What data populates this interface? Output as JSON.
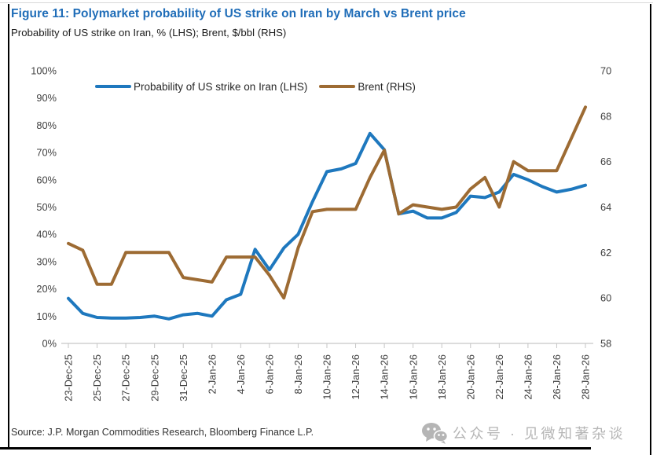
{
  "figure": {
    "title": "Figure 11: Polymarket probability of US strike on Iran by March vs Brent price",
    "subtitle": "Probability of US strike on Iran, % (LHS); Brent, $/bbl (RHS)",
    "source": "Source: J.P. Morgan Commodities Research, Bloomberg Finance L.P.",
    "watermark": "公众号 · 见微知著杂谈"
  },
  "colors": {
    "title": "#1F6DB8",
    "probability_line": "#1E78BE",
    "brent_line": "#9D6B33",
    "axis_text": "#404040",
    "axis_line": "#C6C6C6",
    "watermark": "#B5B5B5",
    "border": "#000000"
  },
  "chart_data": {
    "type": "line",
    "title": "Figure 11: Polymarket probability of US strike on Iran by March vs Brent price",
    "subtitle": "Probability of US strike on Iran, % (LHS); Brent, $/bbl (RHS)",
    "legend_position": "top",
    "grid": false,
    "x_tick_every": 2,
    "x": [
      "23-Dec-25",
      "24-Dec-25",
      "25-Dec-25",
      "26-Dec-25",
      "27-Dec-25",
      "28-Dec-25",
      "29-Dec-25",
      "30-Dec-25",
      "31-Dec-25",
      "1-Jan-26",
      "2-Jan-26",
      "3-Jan-26",
      "4-Jan-26",
      "5-Jan-26",
      "6-Jan-26",
      "7-Jan-26",
      "8-Jan-26",
      "9-Jan-26",
      "10-Jan-26",
      "11-Jan-26",
      "12-Jan-26",
      "13-Jan-26",
      "14-Jan-26",
      "15-Jan-26",
      "16-Jan-26",
      "17-Jan-26",
      "18-Jan-26",
      "19-Jan-26",
      "20-Jan-26",
      "21-Jan-26",
      "22-Jan-26",
      "23-Jan-26",
      "24-Jan-26",
      "25-Jan-26",
      "26-Jan-26",
      "27-Jan-26",
      "28-Jan-26"
    ],
    "series": [
      {
        "name": "Probability of US strike on Iran (LHS)",
        "axis": "left",
        "unit": "%",
        "color": "#1E78BE",
        "values": [
          16.5,
          11,
          9.5,
          9.3,
          9.3,
          9.5,
          10,
          9,
          10.5,
          11,
          10,
          16,
          18,
          34.5,
          27,
          35,
          40,
          52,
          63,
          64,
          66,
          77,
          71,
          47.5,
          48.5,
          46,
          46,
          48,
          54,
          53.5,
          55.5,
          62,
          60,
          57.5,
          55.5,
          56.5,
          58
        ]
      },
      {
        "name": "Brent (RHS)",
        "axis": "right",
        "unit": "$/bbl",
        "color": "#9D6B33",
        "values": [
          62.4,
          62.1,
          60.6,
          60.6,
          62.0,
          62.0,
          62.0,
          62.0,
          60.9,
          60.8,
          60.7,
          61.8,
          61.8,
          61.8,
          61.0,
          60.0,
          62.2,
          63.8,
          63.9,
          63.9,
          63.9,
          65.3,
          66.5,
          63.7,
          64.1,
          64.0,
          63.9,
          64.0,
          64.8,
          65.3,
          64.0,
          66.0,
          65.6,
          65.6,
          65.6,
          67.0,
          68.4
        ]
      }
    ],
    "left_axis": {
      "min": 0,
      "max": 100,
      "ticks": [
        "0%",
        "10%",
        "20%",
        "30%",
        "40%",
        "50%",
        "60%",
        "70%",
        "80%",
        "90%",
        "100%"
      ]
    },
    "right_axis": {
      "min": 58,
      "max": 70,
      "ticks": [
        "58",
        "60",
        "62",
        "64",
        "66",
        "68",
        "70"
      ]
    }
  }
}
